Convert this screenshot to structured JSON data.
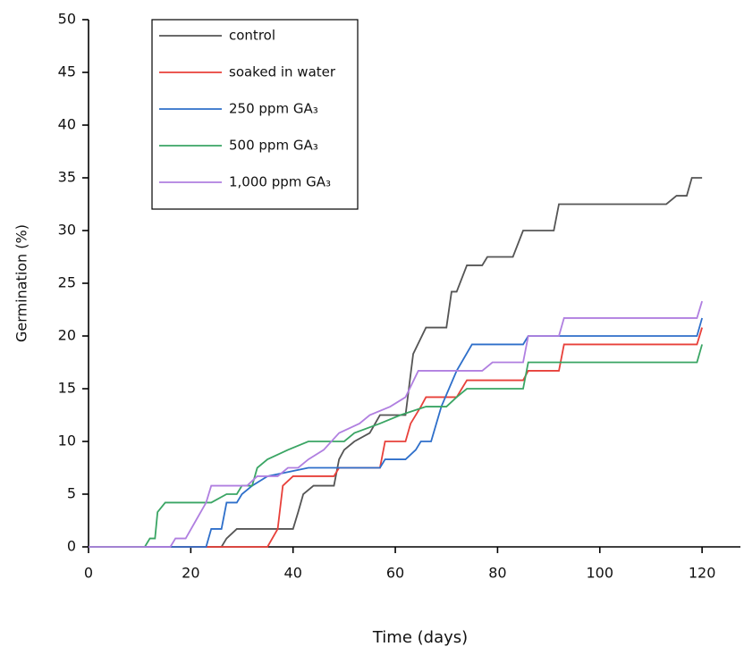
{
  "chart_data": {
    "type": "line",
    "x_label": "Time (days)",
    "y_label": "Germination (%)",
    "xlim": [
      0,
      127.5
    ],
    "xticks": [
      0,
      20,
      40,
      60,
      80,
      100,
      120
    ],
    "ylim": [
      0,
      50
    ],
    "yticks": [
      0,
      5,
      10,
      15,
      20,
      25,
      30,
      35,
      40,
      45,
      50
    ],
    "legend": "upper-left",
    "series": [
      {
        "name": "control",
        "color": "#555555",
        "x": [
          0,
          26,
          27,
          29,
          40,
          41,
          42,
          44,
          48,
          49,
          50,
          52,
          55,
          57,
          62,
          63.5,
          66,
          70,
          71,
          72,
          74,
          77,
          78,
          83,
          85,
          91,
          92,
          113,
          115,
          117,
          118,
          120
        ],
        "values": [
          0,
          0,
          0.8,
          1.7,
          1.7,
          3.3,
          5,
          5.8,
          5.8,
          8.3,
          9.2,
          10,
          10.8,
          12.5,
          12.5,
          18.3,
          20.8,
          20.8,
          24.2,
          24.2,
          26.7,
          26.7,
          27.5,
          27.5,
          30,
          30,
          32.5,
          32.5,
          33.3,
          33.3,
          35,
          35
        ]
      },
      {
        "name": "soaked in water",
        "color": "#e8403a",
        "x": [
          0,
          35,
          37,
          38,
          40,
          48,
          49,
          57,
          58,
          62,
          63,
          65,
          66,
          72,
          73,
          74,
          85,
          86,
          92,
          93,
          119,
          120
        ],
        "values": [
          0,
          0,
          1.7,
          5.8,
          6.7,
          6.7,
          7.5,
          7.5,
          10,
          10,
          11.7,
          13.3,
          14.2,
          14.2,
          15,
          15.8,
          15.8,
          16.7,
          16.7,
          19.2,
          19.2,
          20.8
        ]
      },
      {
        "name": "250 ppm GA₃",
        "color": "#2e6fca",
        "x": [
          0,
          23,
          24,
          26,
          27,
          29,
          30,
          32,
          35,
          43,
          57,
          58,
          62,
          64,
          65,
          67,
          69,
          72,
          75,
          85,
          86,
          119,
          120
        ],
        "values": [
          0,
          0,
          1.7,
          1.7,
          4.2,
          4.2,
          5,
          5.8,
          6.7,
          7.5,
          7.5,
          8.3,
          8.3,
          9.2,
          10,
          10,
          13.3,
          16.7,
          19.2,
          19.2,
          20,
          20,
          21.7
        ]
      },
      {
        "name": "500 ppm GA₃",
        "color": "#3aa564",
        "x": [
          0,
          11,
          12,
          13,
          13.5,
          15,
          24,
          27,
          29,
          30,
          32,
          33,
          35,
          39,
          43,
          50,
          52,
          57,
          61,
          66,
          70,
          72,
          74,
          85,
          86,
          119,
          120
        ],
        "values": [
          0,
          0,
          0.8,
          0.8,
          3.3,
          4.2,
          4.2,
          5,
          5,
          5.8,
          5.8,
          7.5,
          8.3,
          9.2,
          10,
          10,
          10.8,
          11.7,
          12.5,
          13.3,
          13.3,
          14.2,
          15,
          15,
          17.5,
          17.5,
          19.2
        ]
      },
      {
        "name": "1,000 ppm GA₃",
        "color": "#b07fe0",
        "x": [
          0,
          16,
          17,
          19,
          21,
          23,
          24,
          31,
          33,
          37,
          39,
          41,
          43,
          46,
          49,
          53,
          55,
          59,
          62,
          64.5,
          77,
          79,
          85,
          86,
          92,
          93,
          119,
          120
        ],
        "values": [
          0,
          0,
          0.8,
          0.8,
          2.5,
          4.2,
          5.8,
          5.8,
          6.7,
          6.7,
          7.5,
          7.5,
          8.3,
          9.2,
          10.8,
          11.7,
          12.5,
          13.3,
          14.2,
          16.7,
          16.7,
          17.5,
          17.5,
          20,
          20,
          21.7,
          21.7,
          23.3
        ]
      }
    ]
  }
}
